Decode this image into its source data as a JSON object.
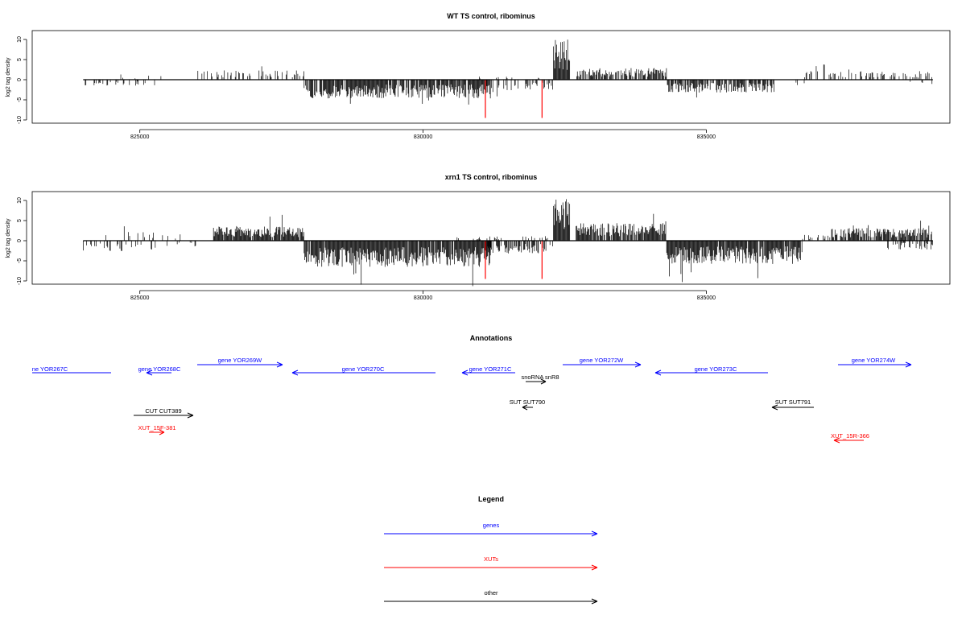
{
  "chart_data": [
    {
      "type": "bar",
      "title": "WT TS control, ribominus",
      "ylabel": "log2 tag density",
      "xlabel": "",
      "xlim": [
        823100,
        839300
      ],
      "ylim": [
        -10,
        12
      ],
      "y_ticks": [
        "10",
        "5",
        "0",
        "-5",
        "-10"
      ],
      "x_ticks": [
        "825000",
        "830000",
        "835000"
      ],
      "grid": false,
      "style": "wt",
      "series": [
        {
          "strand": "plus",
          "description": "forward-strand tag density bars above zero"
        },
        {
          "strand": "minus",
          "description": "reverse-strand tag density bars below zero"
        }
      ],
      "peak_approx": {
        "x": 832400,
        "y": 10.5
      },
      "red_marks": [
        {
          "x": 831100,
          "y": -9.5
        },
        {
          "x": 832100,
          "y": -9.5
        }
      ]
    },
    {
      "type": "bar",
      "title": "xrn1 TS control, ribominus",
      "ylabel": "log2 tag density",
      "xlabel": "",
      "xlim": [
        823100,
        839300
      ],
      "ylim": [
        -10,
        12
      ],
      "y_ticks": [
        "10",
        "5",
        "0",
        "-5",
        "-10"
      ],
      "x_ticks": [
        "825000",
        "830000",
        "835000"
      ],
      "grid": false,
      "style": "xrn1",
      "series": [
        {
          "strand": "plus",
          "description": "forward-strand tag density bars above zero"
        },
        {
          "strand": "minus",
          "description": "reverse-strand tag density bars below zero"
        }
      ],
      "peak_approx": {
        "x": 832400,
        "y": 11
      },
      "red_marks": [
        {
          "x": 831100,
          "y": -9.5
        },
        {
          "x": 832100,
          "y": -9.5
        }
      ]
    }
  ],
  "annotations": {
    "title": "Annotations",
    "items": [
      {
        "label": "ne YOR267C",
        "kind": "gene",
        "dir": "left",
        "row": 0
      },
      {
        "label": "gene YOR268C",
        "kind": "gene",
        "dir": "left",
        "row": 0
      },
      {
        "label": "gene YOR269W",
        "kind": "gene",
        "dir": "right",
        "row": 1
      },
      {
        "label": "gene YOR270C",
        "kind": "gene",
        "dir": "left",
        "row": 0
      },
      {
        "label": "gene YOR271C",
        "kind": "gene",
        "dir": "left",
        "row": 0
      },
      {
        "label": "gene YOR272W",
        "kind": "gene",
        "dir": "right",
        "row": 1
      },
      {
        "label": "gene YOR273C",
        "kind": "gene",
        "dir": "left",
        "row": 0
      },
      {
        "label": "gene YOR274W",
        "kind": "gene",
        "dir": "right",
        "row": 1
      },
      {
        "label": "snoRNA snR8",
        "kind": "other",
        "dir": "right",
        "row": 2
      },
      {
        "label": "SUT SUT790",
        "kind": "other",
        "dir": "left",
        "row": 3
      },
      {
        "label": "SUT SUT791",
        "kind": "other",
        "dir": "left",
        "row": 3
      },
      {
        "label": "CUT CUT389",
        "kind": "other",
        "dir": "right",
        "row": 4
      },
      {
        "label": "XUT_15F-381",
        "kind": "xut",
        "dir": "right",
        "row": 5
      },
      {
        "label": "XUT_15R-366",
        "kind": "xut",
        "dir": "left",
        "row": 6
      }
    ]
  },
  "legend": {
    "title": "Legend",
    "items": [
      {
        "label": "genes",
        "color": "#0000ff"
      },
      {
        "label": "XUTs",
        "color": "#ff0000"
      },
      {
        "label": "other",
        "color": "#000000"
      }
    ]
  },
  "colors": {
    "gene": "#0000ff",
    "xut": "#ff0000",
    "other": "#000000",
    "bar": "#000000",
    "mark": "#ff0000"
  }
}
